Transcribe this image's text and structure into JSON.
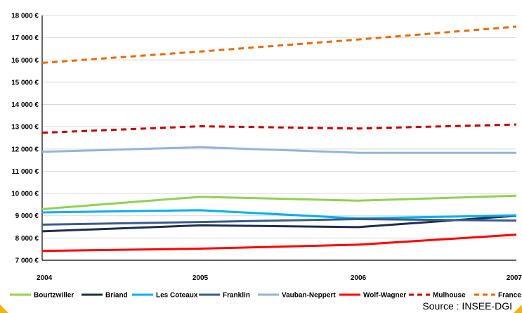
{
  "chart_data": {
    "type": "line",
    "categories": [
      "2004",
      "2005",
      "2006",
      "2007"
    ],
    "ylim": [
      7000,
      18000
    ],
    "y_ticks": [
      "7 000 €",
      "8 000 €",
      "9 000 €",
      "10 000 €",
      "11 000 €",
      "12 000 €",
      "13 000 €",
      "14 000 €",
      "15 000 €",
      "16 000 €",
      "17 000 €",
      "18 000 €"
    ],
    "grid": "horizontal",
    "legend_position": "bottom",
    "series": [
      {
        "name": "Bourtzwiller",
        "color": "#92d050",
        "dash": false,
        "values": [
          9300,
          9850,
          9680,
          9900
        ]
      },
      {
        "name": "Briand",
        "color": "#1f2d4d",
        "dash": false,
        "values": [
          8300,
          8570,
          8490,
          9000
        ]
      },
      {
        "name": "Les Coteaux",
        "color": "#00b0f0",
        "dash": false,
        "values": [
          9150,
          9250,
          8880,
          9020
        ]
      },
      {
        "name": "Franklin",
        "color": "#3b5b8c",
        "dash": false,
        "values": [
          8600,
          8720,
          8850,
          8780
        ]
      },
      {
        "name": "Vauban-Neppert",
        "color": "#95b3d7",
        "dash": false,
        "values": [
          11870,
          12080,
          11830,
          11830
        ]
      },
      {
        "name": "Wolf-Wagner",
        "color": "#ff0000",
        "dash": false,
        "values": [
          7420,
          7520,
          7700,
          8150
        ]
      },
      {
        "name": "Mulhouse",
        "color": "#c00000",
        "dash": true,
        "values": [
          12730,
          13020,
          12920,
          13100
        ]
      },
      {
        "name": "France",
        "color": "#e46c0a",
        "dash": true,
        "values": [
          15870,
          16380,
          16920,
          17500
        ]
      }
    ]
  },
  "source_text": "Source : INSEE-DGI"
}
